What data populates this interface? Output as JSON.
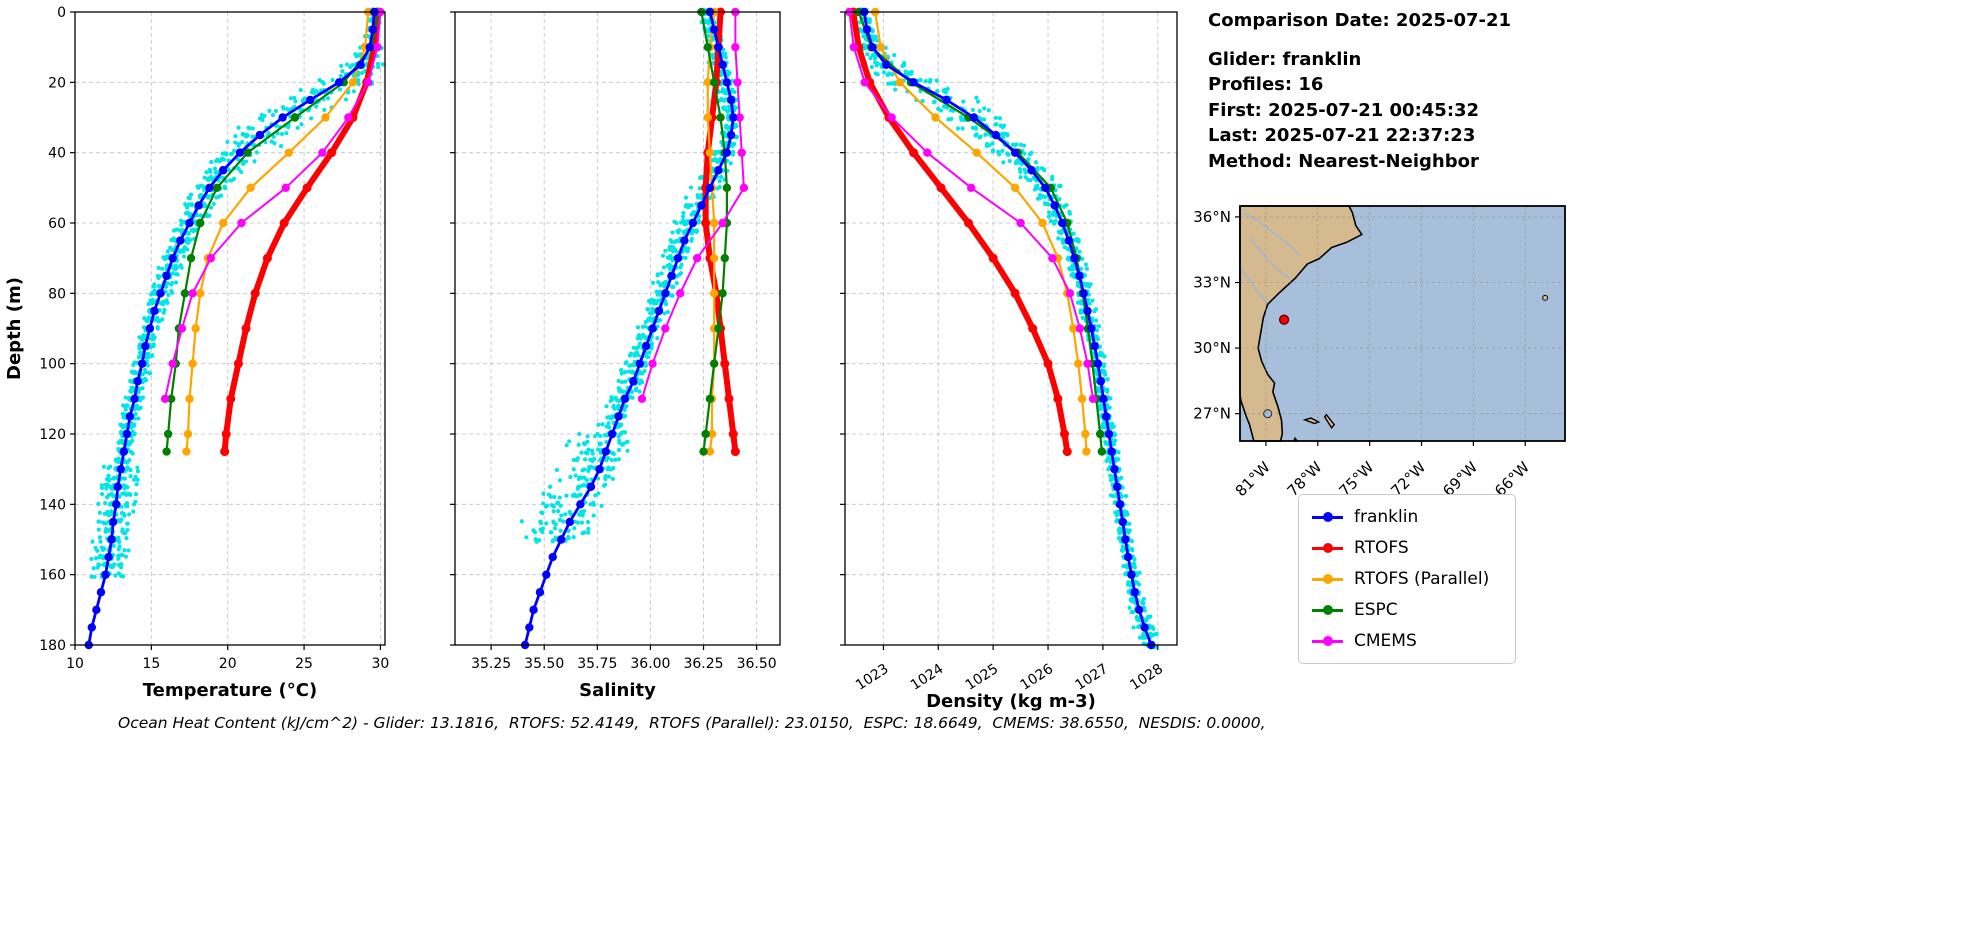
{
  "info": {
    "comparison_date": "Comparison Date: 2025-07-21",
    "glider": "Glider: franklin",
    "profiles": "Profiles: 16",
    "first": "First: 2025-07-21 00:45:32",
    "last": "Last: 2025-07-21 22:37:23",
    "method": "Method: Nearest-Neighbor"
  },
  "footer": "Ocean Heat Content (kJ/cm^2) - Glider: 13.1816,  RTOFS: 52.4149,  RTOFS (Parallel): 23.0150,  ESPC: 18.6649,  CMEMS: 38.6550,  NESDIS: 0.0000,",
  "legend": [
    {
      "label": "franklin",
      "color": "#0000FF"
    },
    {
      "label": "RTOFS",
      "color": "#FF0000"
    },
    {
      "label": "RTOFS (Parallel)",
      "color": "#FFA500"
    },
    {
      "label": "ESPC",
      "color": "#008000"
    },
    {
      "label": "CMEMS",
      "color": "#FF00FF"
    }
  ],
  "map": {
    "extent": {
      "lon": [
        -82.5,
        -63.7
      ],
      "lat": [
        25.75,
        36.5
      ]
    },
    "ocean_color": "#A8BFDC",
    "land_color": "#D6BA8F",
    "river_color": "#8FB6E3",
    "lat_ticks": [
      {
        "value": 36,
        "label": "36°N"
      },
      {
        "value": 33,
        "label": "33°N"
      },
      {
        "value": 30,
        "label": "30°N"
      },
      {
        "value": 27,
        "label": "27°N"
      }
    ],
    "lon_ticks": [
      {
        "value": -81,
        "label": "81°W"
      },
      {
        "value": -78,
        "label": "78°W"
      },
      {
        "value": -75,
        "label": "75°W"
      },
      {
        "value": -72,
        "label": "72°W"
      },
      {
        "value": -69,
        "label": "69°W"
      },
      {
        "value": -66,
        "label": "66°W"
      }
    ],
    "land": [
      [
        -82.5,
        36.5
      ],
      [
        -76.2,
        36.5
      ],
      [
        -76.0,
        36.2
      ],
      [
        -75.8,
        35.6
      ],
      [
        -75.45,
        35.2
      ],
      [
        -76.3,
        34.85
      ],
      [
        -77.2,
        34.6
      ],
      [
        -77.9,
        34.1
      ],
      [
        -78.6,
        33.85
      ],
      [
        -79.3,
        33.2
      ],
      [
        -80.2,
        32.55
      ],
      [
        -80.9,
        32.0
      ],
      [
        -81.15,
        31.4
      ],
      [
        -81.3,
        30.7
      ],
      [
        -81.45,
        30.0
      ],
      [
        -81.25,
        29.4
      ],
      [
        -80.9,
        28.8
      ],
      [
        -80.5,
        28.4
      ],
      [
        -80.6,
        28.0
      ],
      [
        -80.3,
        27.3
      ],
      [
        -80.1,
        26.7
      ],
      [
        -80.05,
        26.1
      ],
      [
        -80.15,
        25.75
      ],
      [
        -81.7,
        25.75
      ],
      [
        -81.95,
        26.5
      ],
      [
        -82.15,
        26.9
      ],
      [
        -82.45,
        27.6
      ],
      [
        -82.5,
        27.9
      ]
    ],
    "islands": [
      [
        [
          -78.75,
          26.72
        ],
        [
          -78.2,
          26.55
        ],
        [
          -77.95,
          26.62
        ],
        [
          -78.4,
          26.8
        ]
      ],
      [
        [
          -77.5,
          26.95
        ],
        [
          -77.05,
          26.5
        ],
        [
          -77.2,
          26.35
        ],
        [
          -77.6,
          26.85
        ]
      ],
      [
        [
          -79.32,
          25.88
        ],
        [
          -79.2,
          25.76
        ],
        [
          -79.38,
          25.76
        ]
      ]
    ],
    "rivers": [
      [
        [
          -82.3,
          36.2
        ],
        [
          -81.5,
          35.85
        ],
        [
          -80.6,
          35.3
        ],
        [
          -79.7,
          34.75
        ],
        [
          -79.05,
          34.25
        ]
      ],
      [
        [
          -81.9,
          35.0
        ],
        [
          -81.1,
          34.25
        ],
        [
          -80.35,
          33.6
        ],
        [
          -79.65,
          33.22
        ]
      ],
      [
        [
          -82.5,
          33.7
        ],
        [
          -81.9,
          33.05
        ],
        [
          -81.35,
          32.45
        ],
        [
          -80.95,
          32.05
        ]
      ]
    ],
    "lake": {
      "lon": -80.9,
      "lat": 27.0,
      "r": 4
    },
    "bermuda": {
      "lon": -64.85,
      "lat": 32.3
    },
    "marker": {
      "lon": -79.95,
      "lat": 31.3,
      "color": "#FF0000"
    }
  },
  "chart_data": [
    {
      "id": "temperature",
      "type": "line",
      "xlabel": "Temperature (°C)",
      "ylabel": "Depth (m)",
      "xlim": [
        10,
        30.3
      ],
      "ylim": [
        0,
        180
      ],
      "y_inverted": true,
      "grid": true,
      "xticks": [
        10,
        15,
        20,
        25,
        30
      ],
      "xtick_labels": [
        "10",
        "15",
        "20",
        "25",
        "30"
      ],
      "yticks": [
        0,
        20,
        40,
        60,
        80,
        100,
        120,
        140,
        160,
        180
      ],
      "depths": {
        "glider": [
          0,
          5,
          10,
          15,
          20,
          25,
          30,
          35,
          40,
          45,
          50,
          55,
          60,
          65,
          70,
          75,
          80,
          85,
          90,
          95,
          100,
          105,
          110,
          115,
          120,
          125,
          130,
          135,
          140,
          145,
          150,
          155,
          160,
          165,
          170,
          175,
          180
        ],
        "model": [
          0,
          10,
          20,
          30,
          40,
          50,
          60,
          70,
          80,
          90,
          100,
          110,
          120,
          125
        ],
        "cmems": [
          0,
          10,
          20,
          30,
          40,
          50,
          60,
          70,
          80,
          90,
          100,
          110
        ]
      },
      "scatter": {
        "label": "glider profile points",
        "color": "#00E5E5",
        "profiles": 16,
        "max_depth": 163,
        "base": 0.3,
        "grad_scale": 1.0,
        "deep_start": 128,
        "deep_amp": 0.7,
        "seed": 7
      },
      "series": [
        {
          "name": "franklin",
          "color": "#0000FF",
          "width": 2.8,
          "marker": 4.2,
          "depth": "glider",
          "values": [
            29.6,
            29.5,
            29.3,
            28.7,
            27.3,
            25.4,
            23.6,
            22.1,
            20.8,
            19.7,
            18.8,
            18.1,
            17.5,
            16.9,
            16.4,
            16.0,
            15.6,
            15.2,
            14.9,
            14.6,
            14.4,
            14.1,
            13.9,
            13.6,
            13.4,
            13.2,
            13.0,
            12.8,
            12.7,
            12.5,
            12.4,
            12.2,
            12.0,
            11.7,
            11.4,
            11.1,
            10.9
          ]
        },
        {
          "name": "RTOFS",
          "color": "#FF0000",
          "width": 6,
          "marker": 4.5,
          "depth": "model",
          "values": [
            29.8,
            29.6,
            29.1,
            28.2,
            26.8,
            25.2,
            23.7,
            22.6,
            21.8,
            21.2,
            20.7,
            20.2,
            19.9,
            19.8
          ]
        },
        {
          "name": "RTOFS (Parallel)",
          "color": "#FFA500",
          "width": 2.2,
          "marker": 4.2,
          "depth": "model",
          "values": [
            29.2,
            29.0,
            28.2,
            26.4,
            24.0,
            21.5,
            19.7,
            18.7,
            18.2,
            17.9,
            17.7,
            17.5,
            17.4,
            17.3
          ]
        },
        {
          "name": "ESPC",
          "color": "#008000",
          "width": 2.2,
          "marker": 4.2,
          "depth": "model",
          "values": [
            29.9,
            29.4,
            27.6,
            24.4,
            21.3,
            19.3,
            18.2,
            17.6,
            17.2,
            16.8,
            16.6,
            16.3,
            16.1,
            16.0
          ]
        },
        {
          "name": "CMEMS",
          "color": "#FF00FF",
          "width": 2,
          "marker": 4.2,
          "depth": "cmems",
          "values": [
            30.0,
            29.8,
            29.2,
            27.9,
            26.2,
            23.8,
            20.9,
            18.9,
            17.7,
            17.0,
            16.4,
            15.9
          ]
        }
      ]
    },
    {
      "id": "salinity",
      "type": "line",
      "xlabel": "Salinity",
      "ylabel": "Depth (m)",
      "xlim": [
        35.08,
        36.61
      ],
      "ylim": [
        0,
        180
      ],
      "y_inverted": true,
      "grid": true,
      "xticks": [
        35.25,
        35.5,
        35.75,
        36.0,
        36.25,
        36.5
      ],
      "xtick_labels": [
        "35.25",
        "35.50",
        "35.75",
        "36.00",
        "36.25",
        "36.50"
      ],
      "yticks": [
        0,
        20,
        40,
        60,
        80,
        100,
        120,
        140,
        160,
        180
      ],
      "depths": {
        "glider": [
          0,
          5,
          10,
          15,
          20,
          25,
          30,
          35,
          40,
          45,
          50,
          55,
          60,
          65,
          70,
          75,
          80,
          85,
          90,
          95,
          100,
          105,
          110,
          115,
          120,
          125,
          130,
          135,
          140,
          145,
          150,
          155,
          160,
          165,
          170,
          175,
          180
        ],
        "model": [
          0,
          10,
          20,
          30,
          40,
          50,
          60,
          70,
          80,
          90,
          100,
          110,
          120,
          125
        ],
        "cmems": [
          0,
          10,
          20,
          30,
          40,
          50,
          60,
          70,
          80,
          90,
          100,
          110
        ]
      },
      "scatter": {
        "label": "glider profile points",
        "color": "#00E5E5",
        "profiles": 16,
        "max_depth": 152,
        "base": 0.03,
        "grad_scale": 1.0,
        "deep_start": 115,
        "deep_amp": 0.1,
        "seed": 11
      },
      "series": [
        {
          "name": "franklin",
          "color": "#0000FF",
          "width": 2.8,
          "marker": 4.2,
          "depth": "glider",
          "values": [
            36.28,
            36.3,
            36.32,
            36.34,
            36.36,
            36.38,
            36.39,
            36.38,
            36.36,
            36.32,
            36.28,
            36.24,
            36.2,
            36.16,
            36.13,
            36.1,
            36.07,
            36.04,
            36.01,
            35.98,
            35.95,
            35.92,
            35.88,
            35.85,
            35.82,
            35.79,
            35.76,
            35.72,
            35.67,
            35.62,
            35.58,
            35.54,
            35.51,
            35.48,
            35.45,
            35.43,
            35.41
          ]
        },
        {
          "name": "RTOFS",
          "color": "#FF0000",
          "width": 6,
          "marker": 4.5,
          "depth": "model",
          "values": [
            36.33,
            36.32,
            36.31,
            36.29,
            36.27,
            36.26,
            36.26,
            36.28,
            36.31,
            36.33,
            36.35,
            36.37,
            36.39,
            36.4
          ]
        },
        {
          "name": "RTOFS (Parallel)",
          "color": "#FFA500",
          "width": 2.2,
          "marker": 4.2,
          "depth": "model",
          "values": [
            36.3,
            36.28,
            36.27,
            36.27,
            36.28,
            36.29,
            36.3,
            36.3,
            36.3,
            36.3,
            36.3,
            36.29,
            36.29,
            36.28
          ]
        },
        {
          "name": "ESPC",
          "color": "#008000",
          "width": 2.2,
          "marker": 4.2,
          "depth": "model",
          "values": [
            36.24,
            36.27,
            36.3,
            36.33,
            36.35,
            36.36,
            36.36,
            36.35,
            36.34,
            36.32,
            36.3,
            36.28,
            36.26,
            36.25
          ]
        },
        {
          "name": "CMEMS",
          "color": "#FF00FF",
          "width": 2,
          "marker": 4.2,
          "depth": "cmems",
          "values": [
            36.4,
            36.4,
            36.41,
            36.42,
            36.43,
            36.44,
            36.34,
            36.22,
            36.14,
            36.07,
            36.01,
            35.96
          ]
        }
      ]
    },
    {
      "id": "density",
      "type": "line",
      "xlabel": "Density (kg m-3)",
      "ylabel": "Depth (m)",
      "xlim": [
        1022.3,
        1028.35
      ],
      "ylim": [
        0,
        180
      ],
      "y_inverted": true,
      "grid": true,
      "xticks": [
        1023,
        1024,
        1025,
        1026,
        1027,
        1028
      ],
      "xtick_labels": [
        "1023",
        "1024",
        "1025",
        "1026",
        "1027",
        "1028"
      ],
      "yticks": [
        0,
        20,
        40,
        60,
        80,
        100,
        120,
        140,
        160,
        180
      ],
      "depths": {
        "glider": [
          0,
          5,
          10,
          15,
          20,
          25,
          30,
          35,
          40,
          45,
          50,
          55,
          60,
          65,
          70,
          75,
          80,
          85,
          90,
          95,
          100,
          105,
          110,
          115,
          120,
          125,
          130,
          135,
          140,
          145,
          150,
          155,
          160,
          165,
          170,
          175,
          180
        ],
        "model": [
          0,
          10,
          20,
          30,
          40,
          50,
          60,
          70,
          80,
          90,
          100,
          110,
          120,
          125
        ],
        "cmems": [
          0,
          10,
          20,
          30,
          40,
          50,
          60,
          70,
          80,
          90,
          100,
          110
        ]
      },
      "scatter": {
        "label": "glider profile points",
        "color": "#00E5E5",
        "profiles": 16,
        "max_depth": 180,
        "base": 0.07,
        "grad_scale": 0.8,
        "deep_start": 200,
        "deep_amp": 0,
        "seed": 13
      },
      "series": [
        {
          "name": "franklin",
          "color": "#0000FF",
          "width": 2.8,
          "marker": 4.2,
          "depth": "glider",
          "values": [
            1022.65,
            1022.7,
            1022.8,
            1023.05,
            1023.55,
            1024.15,
            1024.65,
            1025.05,
            1025.4,
            1025.7,
            1025.95,
            1026.12,
            1026.26,
            1026.38,
            1026.48,
            1026.57,
            1026.65,
            1026.72,
            1026.79,
            1026.85,
            1026.91,
            1026.96,
            1027.01,
            1027.06,
            1027.11,
            1027.16,
            1027.21,
            1027.26,
            1027.31,
            1027.36,
            1027.41,
            1027.46,
            1027.52,
            1027.58,
            1027.66,
            1027.76,
            1027.88
          ]
        },
        {
          "name": "RTOFS",
          "color": "#FF0000",
          "width": 6,
          "marker": 4.5,
          "depth": "model",
          "values": [
            1022.45,
            1022.55,
            1022.75,
            1023.1,
            1023.55,
            1024.05,
            1024.55,
            1025.0,
            1025.4,
            1025.72,
            1026.0,
            1026.18,
            1026.3,
            1026.35
          ]
        },
        {
          "name": "RTOFS (Parallel)",
          "color": "#FFA500",
          "width": 2.2,
          "marker": 4.2,
          "depth": "model",
          "values": [
            1022.85,
            1022.95,
            1023.3,
            1023.95,
            1024.7,
            1025.4,
            1025.9,
            1026.18,
            1026.35,
            1026.46,
            1026.55,
            1026.62,
            1026.68,
            1026.7
          ]
        },
        {
          "name": "ESPC",
          "color": "#008000",
          "width": 2.2,
          "marker": 4.2,
          "depth": "model",
          "values": [
            1022.55,
            1022.78,
            1023.5,
            1024.55,
            1025.45,
            1026.05,
            1026.35,
            1026.52,
            1026.63,
            1026.73,
            1026.81,
            1026.88,
            1026.95,
            1026.98
          ]
        },
        {
          "name": "CMEMS",
          "color": "#FF00FF",
          "width": 2,
          "marker": 4.2,
          "depth": "cmems",
          "values": [
            1022.38,
            1022.46,
            1022.66,
            1023.15,
            1023.8,
            1024.6,
            1025.5,
            1026.08,
            1026.4,
            1026.58,
            1026.72,
            1026.82
          ]
        }
      ]
    }
  ]
}
